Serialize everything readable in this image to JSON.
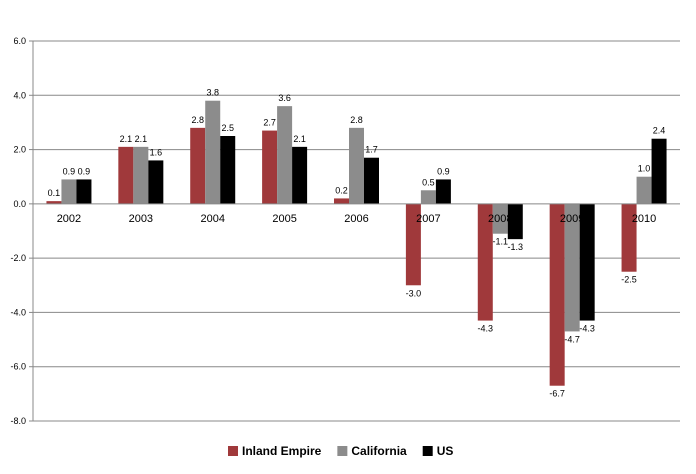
{
  "chart_data": {
    "type": "bar",
    "title": "",
    "xlabel": "",
    "ylabel": "",
    "categories": [
      "2002",
      "2003",
      "2004",
      "2005",
      "2006",
      "2007",
      "2008",
      "2009",
      "2010"
    ],
    "series": [
      {
        "name": "Inland Empire",
        "color": "#A0393B",
        "values": [
          0.1,
          2.1,
          2.8,
          2.7,
          0.2,
          -3.0,
          -4.3,
          -6.7,
          -2.5
        ]
      },
      {
        "name": "California",
        "color": "#8C8C8C",
        "values": [
          0.9,
          2.1,
          3.8,
          3.6,
          2.8,
          0.5,
          -1.1,
          -4.7,
          1.0
        ]
      },
      {
        "name": "US",
        "color": "#000000",
        "values": [
          0.9,
          1.6,
          2.5,
          2.1,
          1.7,
          0.9,
          -1.3,
          -4.3,
          2.4
        ]
      }
    ],
    "ylim": [
      -8.0,
      6.0
    ],
    "yticks": [
      "6.0",
      "4.0",
      "2.0",
      "0.0",
      "-2.0",
      "-4.0",
      "-6.0",
      "-8.0"
    ],
    "grid": true,
    "legend": "bottom-center"
  }
}
